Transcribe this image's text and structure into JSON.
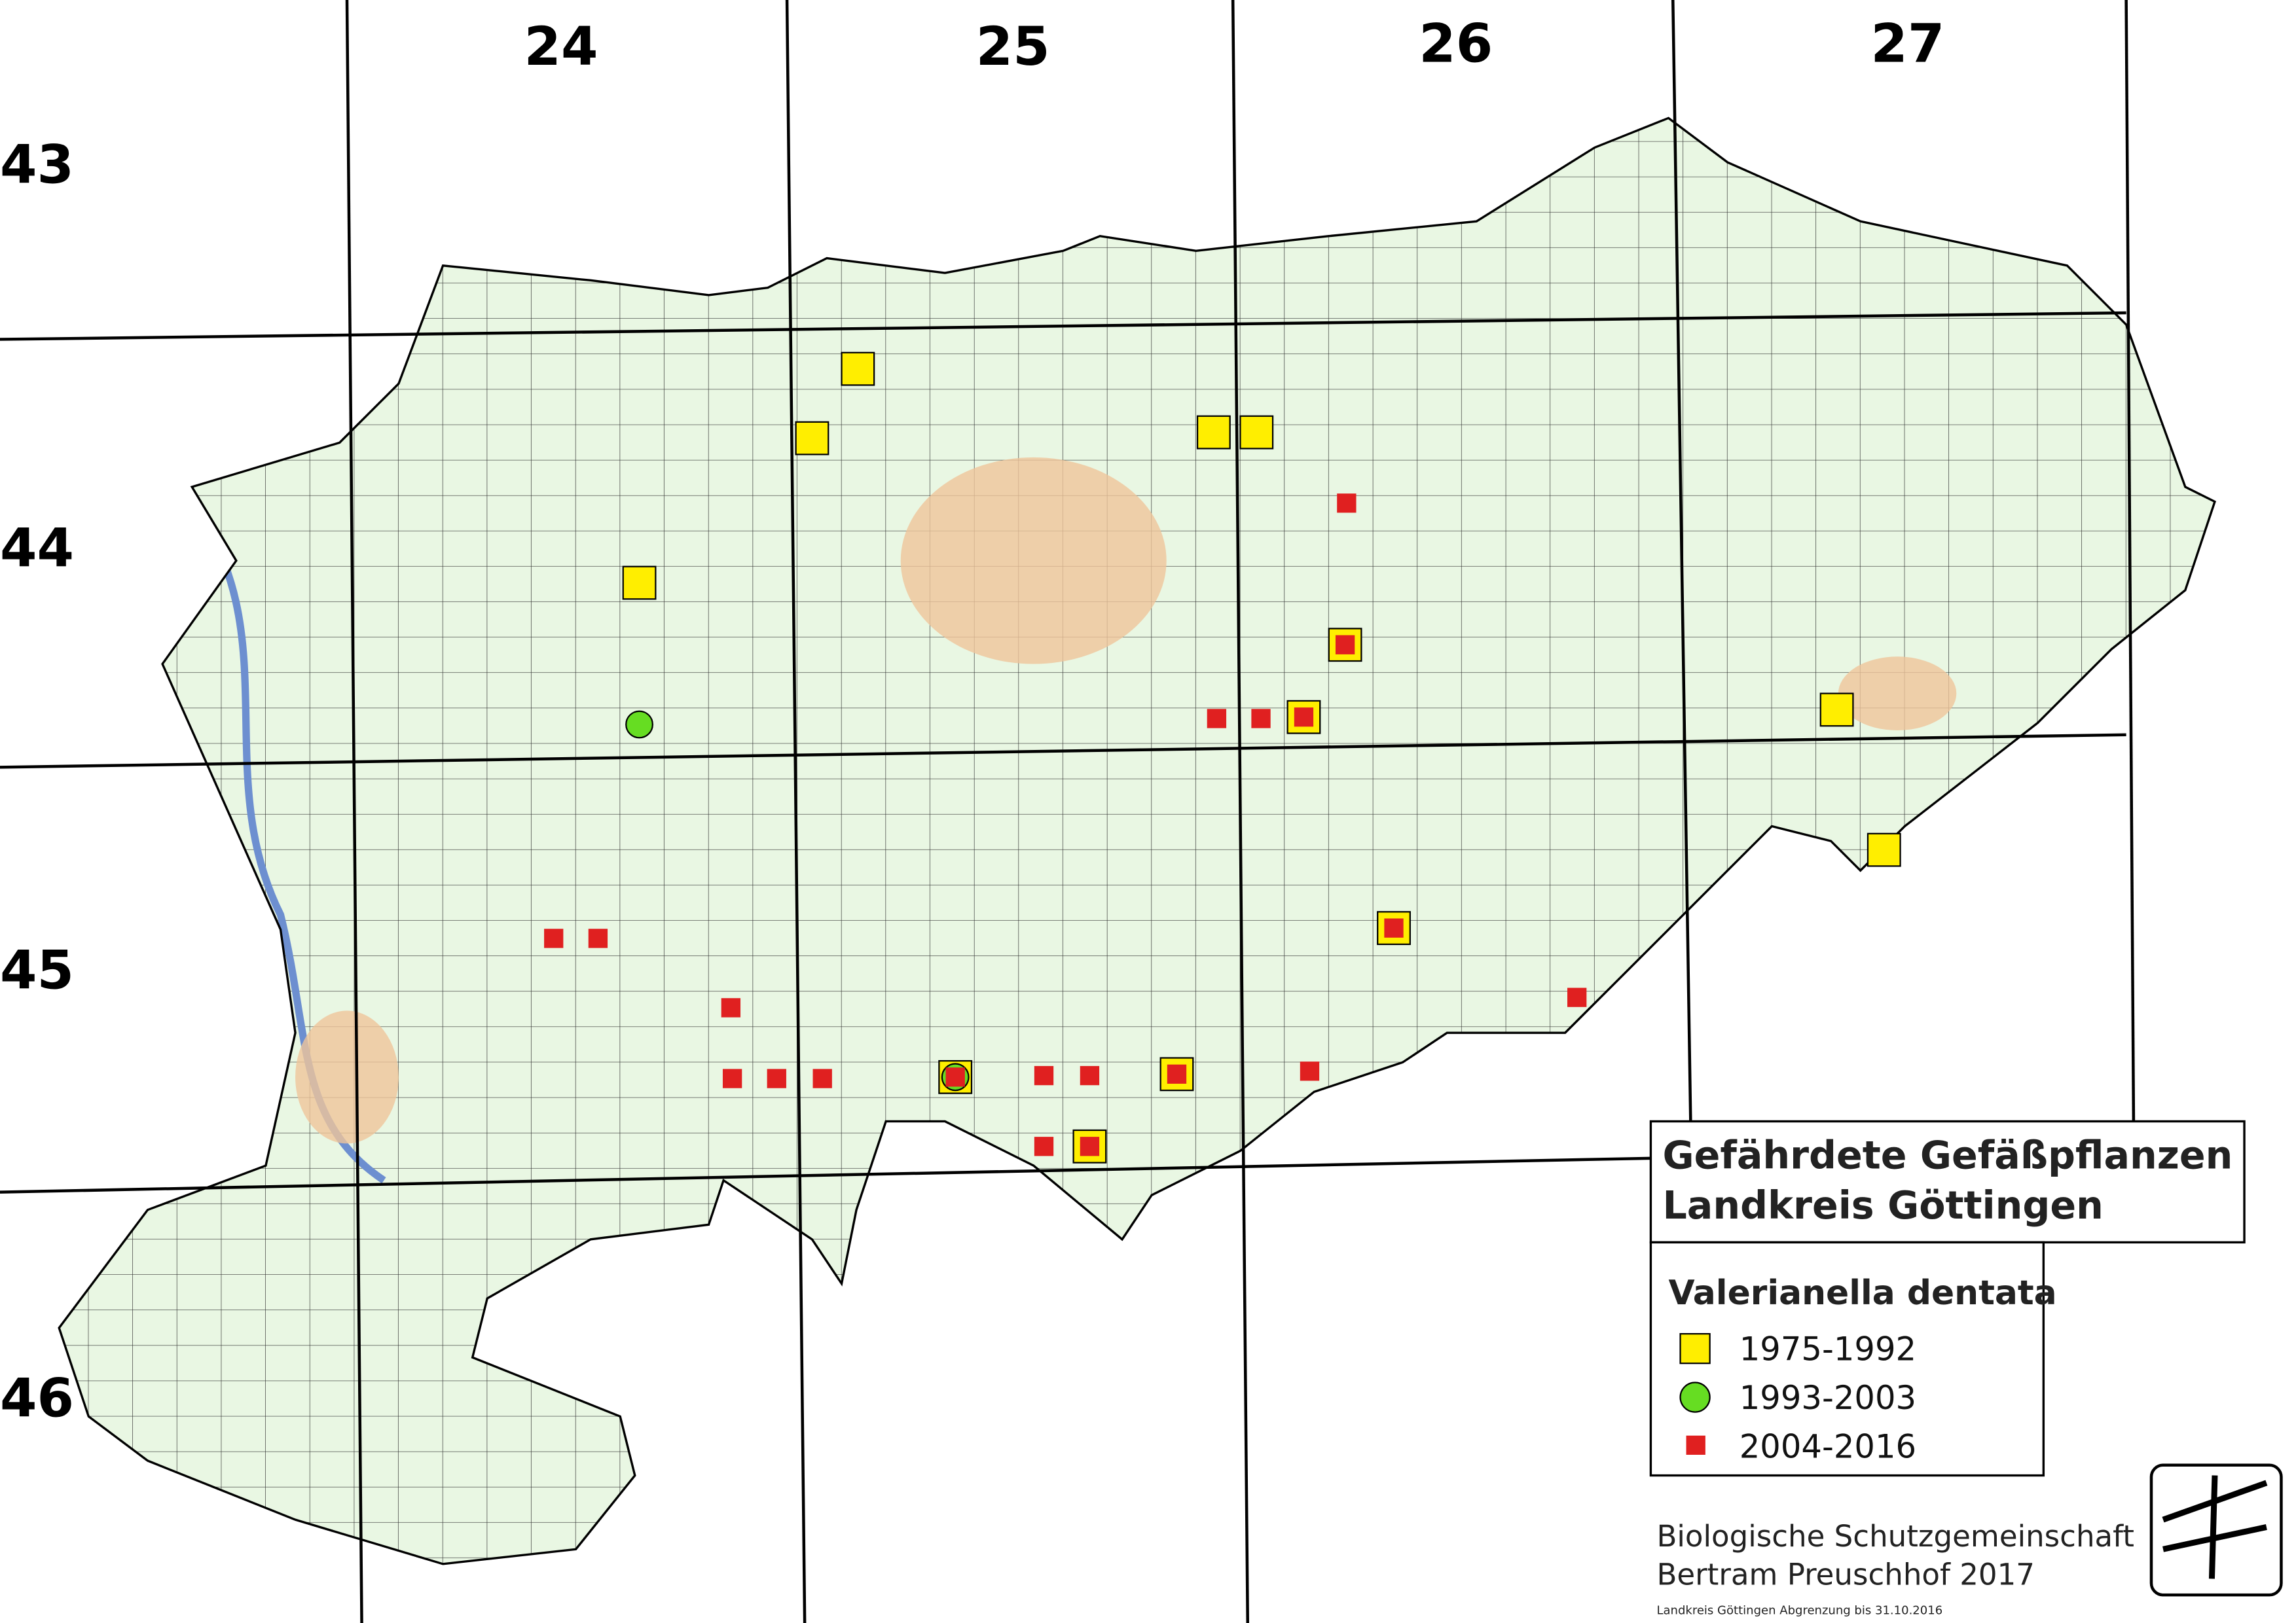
{
  "map": {
    "columns": [
      "24",
      "25",
      "26",
      "27"
    ],
    "rows": [
      "43",
      "44",
      "45",
      "46"
    ],
    "title": [
      "Gefährdete Gefäßpflanzen",
      "Landkreis Göttingen"
    ],
    "legend": {
      "species": "Valerianella dentata",
      "items": [
        "1975-1992",
        "1993-2003",
        "2004-2016"
      ]
    },
    "credits": [
      "Biologische Schutzgemeinschaft",
      "Bertram Preuschhof 2017"
    ],
    "note": "Landkreis Göttingen Abgrenzung bis 31.10.2016"
  }
}
